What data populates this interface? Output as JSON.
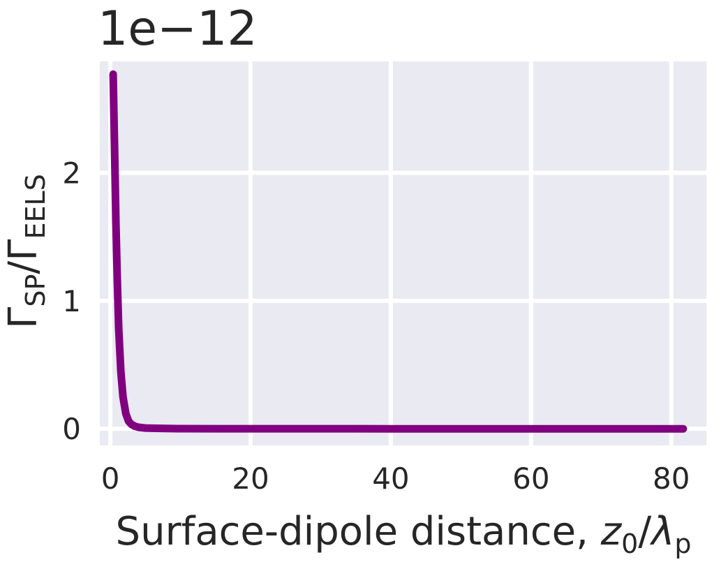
{
  "chart_data": {
    "type": "line",
    "title": "",
    "offset_text": "1e−12",
    "xlabel": {
      "main": "Surface-dipole distance, ",
      "var1": "z",
      "sub1": "0",
      "slash": "/",
      "var2": "λ",
      "sub2": "p"
    },
    "ylabel": {
      "g1": "Γ",
      "sub1": "SP",
      "slash": "/",
      "g2": "Γ",
      "sub2": "EELS"
    },
    "xlim": [
      -1.5,
      85.0
    ],
    "ylim": [
      -0.13,
      2.87
    ],
    "xticks": [
      0,
      20,
      40,
      60,
      80
    ],
    "xtick_labels": [
      "0",
      "20",
      "40",
      "60",
      "80"
    ],
    "yticks": [
      0,
      1,
      2
    ],
    "ytick_labels": [
      "0",
      "1",
      "2"
    ],
    "grid": true,
    "series": [
      {
        "name": "",
        "color": "#800080",
        "x": [
          0.4,
          0.6,
          0.8,
          1.0,
          1.2,
          1.5,
          1.8,
          2.2,
          2.6,
          3.0,
          3.5,
          4.0,
          5.0,
          6.0,
          8.0,
          10,
          15,
          20,
          30,
          40,
          50,
          60,
          70,
          81.7
        ],
        "y": [
          2.77,
          2.2,
          1.6,
          1.15,
          0.78,
          0.45,
          0.25,
          0.12,
          0.06,
          0.035,
          0.02,
          0.012,
          0.006,
          0.004,
          0.002,
          0.001,
          0.0005,
          0.0003,
          0.0001,
          5e-05,
          3e-05,
          2e-05,
          1e-05,
          1e-05
        ]
      }
    ],
    "style": {
      "background": "#eaeaf2",
      "grid_color": "#ffffff",
      "line_color": "#800080"
    }
  }
}
